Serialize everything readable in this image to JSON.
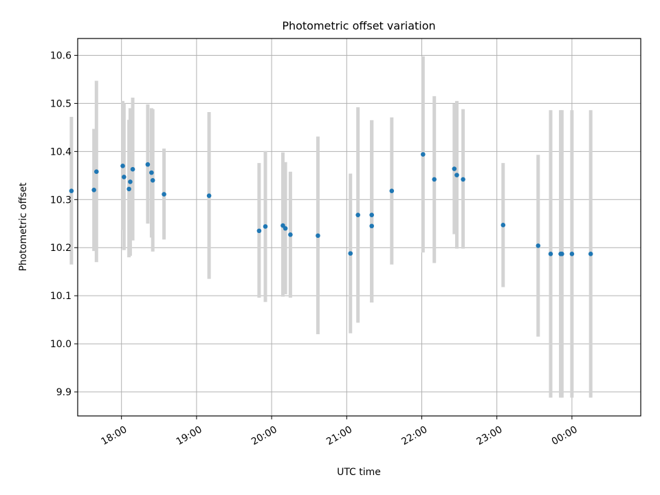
{
  "chart_data": {
    "type": "scatter",
    "title": "Photometric offset variation",
    "xlabel": "UTC time",
    "ylabel": "Photometric offset",
    "x_unit": "UTC (HH:MM)",
    "xlim": [
      "17:25",
      "00:55"
    ],
    "ylim": [
      9.85,
      10.635
    ],
    "grid": true,
    "x_ticks": [
      {
        "t": "18:00",
        "label": "18:00"
      },
      {
        "t": "19:00",
        "label": "19:00"
      },
      {
        "t": "20:00",
        "label": "20:00"
      },
      {
        "t": "21:00",
        "label": "21:00"
      },
      {
        "t": "22:00",
        "label": "22:00"
      },
      {
        "t": "23:00",
        "label": "23:00"
      },
      {
        "t": "00:00",
        "label": "00:00"
      }
    ],
    "y_ticks": [
      9.9,
      10.0,
      10.1,
      10.2,
      10.3,
      10.4,
      10.5,
      10.6
    ],
    "y_tick_labels": [
      "9.9",
      "10.0",
      "10.1",
      "10.2",
      "10.3",
      "10.4",
      "10.5",
      "10.6"
    ],
    "point_color": "#1f77b4",
    "errorbar_color": "#d3d3d3",
    "points": [
      {
        "t": "17:20",
        "y": 10.318,
        "lo": 10.165,
        "hi": 10.472
      },
      {
        "t": "17:38",
        "y": 10.32,
        "lo": 10.193,
        "hi": 10.447
      },
      {
        "t": "17:40",
        "y": 10.358,
        "lo": 10.17,
        "hi": 10.547
      },
      {
        "t": "18:01",
        "y": 10.37,
        "lo": 10.237,
        "hi": 10.505
      },
      {
        "t": "18:02",
        "y": 10.347,
        "lo": 10.195,
        "hi": 10.5
      },
      {
        "t": "18:06",
        "y": 10.322,
        "lo": 10.18,
        "hi": 10.466
      },
      {
        "t": "18:07",
        "y": 10.337,
        "lo": 10.183,
        "hi": 10.49
      },
      {
        "t": "18:09",
        "y": 10.363,
        "lo": 10.215,
        "hi": 10.512
      },
      {
        "t": "18:21",
        "y": 10.373,
        "lo": 10.25,
        "hi": 10.498
      },
      {
        "t": "18:24",
        "y": 10.356,
        "lo": 10.221,
        "hi": 10.49
      },
      {
        "t": "18:25",
        "y": 10.34,
        "lo": 10.192,
        "hi": 10.488
      },
      {
        "t": "18:34",
        "y": 10.311,
        "lo": 10.217,
        "hi": 10.406
      },
      {
        "t": "19:10",
        "y": 10.308,
        "lo": 10.135,
        "hi": 10.482
      },
      {
        "t": "19:50",
        "y": 10.235,
        "lo": 10.096,
        "hi": 10.376
      },
      {
        "t": "19:55",
        "y": 10.244,
        "lo": 10.087,
        "hi": 10.401
      },
      {
        "t": "20:09",
        "y": 10.246,
        "lo": 10.098,
        "hi": 10.398
      },
      {
        "t": "20:11",
        "y": 10.24,
        "lo": 10.103,
        "hi": 10.378
      },
      {
        "t": "20:15",
        "y": 10.227,
        "lo": 10.096,
        "hi": 10.358
      },
      {
        "t": "20:37",
        "y": 10.225,
        "lo": 10.02,
        "hi": 10.431
      },
      {
        "t": "21:03",
        "y": 10.188,
        "lo": 10.022,
        "hi": 10.354
      },
      {
        "t": "21:09",
        "y": 10.268,
        "lo": 10.044,
        "hi": 10.492
      },
      {
        "t": "21:20",
        "y": 10.245,
        "lo": 10.086,
        "hi": 10.465
      },
      {
        "t": "21:20",
        "y": 10.268,
        "lo": 10.086,
        "hi": 10.465
      },
      {
        "t": "21:36",
        "y": 10.318,
        "lo": 10.165,
        "hi": 10.471
      },
      {
        "t": "22:01",
        "y": 10.394,
        "lo": 10.19,
        "hi": 10.598
      },
      {
        "t": "22:10",
        "y": 10.342,
        "lo": 10.168,
        "hi": 10.515
      },
      {
        "t": "22:26",
        "y": 10.364,
        "lo": 10.228,
        "hi": 10.499
      },
      {
        "t": "22:28",
        "y": 10.351,
        "lo": 10.198,
        "hi": 10.505
      },
      {
        "t": "22:33",
        "y": 10.342,
        "lo": 10.198,
        "hi": 10.488
      },
      {
        "t": "23:05",
        "y": 10.247,
        "lo": 10.118,
        "hi": 10.376
      },
      {
        "t": "23:33",
        "y": 10.204,
        "lo": 10.015,
        "hi": 10.393
      },
      {
        "t": "23:43",
        "y": 10.187,
        "lo": 9.888,
        "hi": 10.486
      },
      {
        "t": "23:51",
        "y": 10.187,
        "lo": 9.888,
        "hi": 10.486
      },
      {
        "t": "23:52",
        "y": 10.187,
        "lo": 9.888,
        "hi": 10.486
      },
      {
        "t": "00:00",
        "y": 10.187,
        "lo": 9.888,
        "hi": 10.486
      },
      {
        "t": "00:15",
        "y": 10.187,
        "lo": 9.888,
        "hi": 10.486
      }
    ]
  }
}
